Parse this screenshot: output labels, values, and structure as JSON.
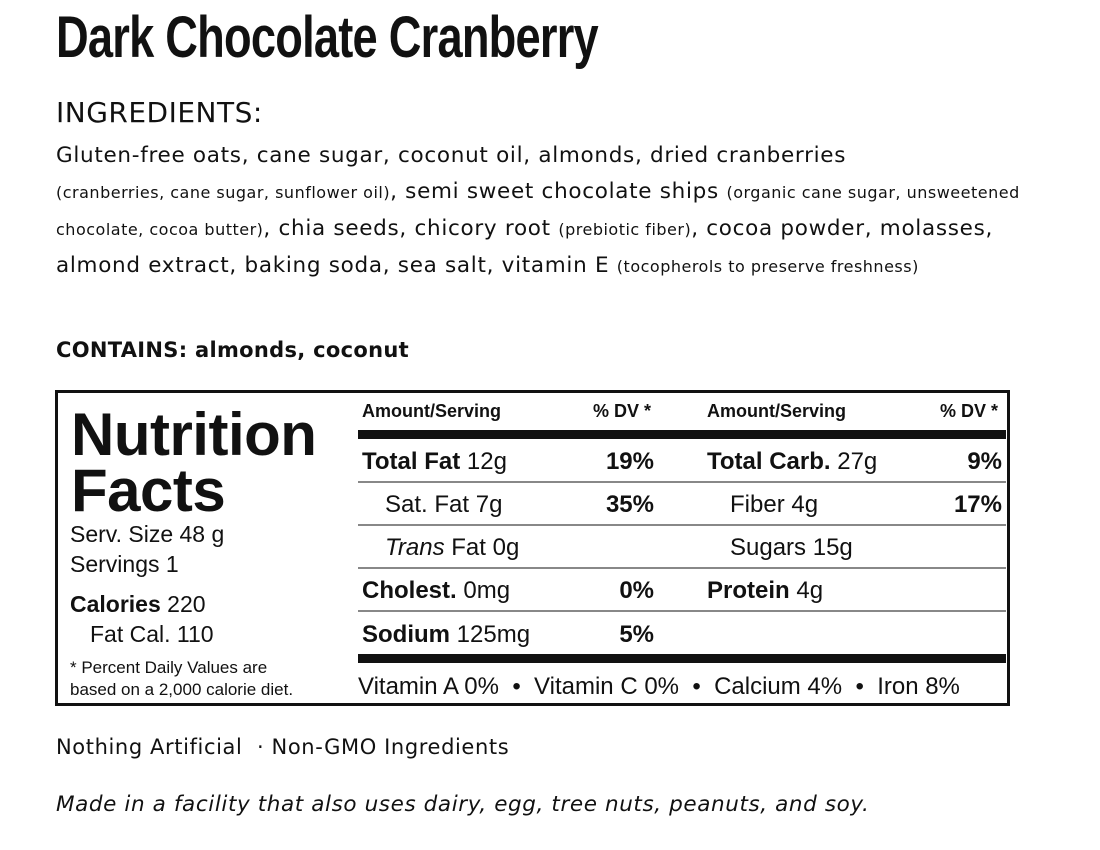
{
  "title": "Dark Chocolate Cranberry",
  "ingredients": {
    "heading": "INGREDIENTS:",
    "part1": "Gluten-free oats, cane sugar, coconut oil, almonds, dried cranberries",
    "part2_small": "(cranberries, cane sugar, sunflower oil)",
    "part3": ", semi sweet chocolate ships",
    "part4_small": "(organic cane sugar, unsweetened chocolate, cocoa butter)",
    "part5": ", chia seeds, chicory root",
    "part6_small": "(prebiotic fiber)",
    "part7": ", cocoa powder, molasses, almond extract, baking soda, sea salt, vitamin E",
    "part8_small": "(tocopherols to preserve freshness)"
  },
  "contains": "CONTAINS: almonds, coconut",
  "nutrition": {
    "title_line1": "Nutrition",
    "title_line2": "Facts",
    "serving_size": "Serv. Size 48 g",
    "servings": "Servings 1",
    "calories_label": "Calories",
    "calories_value": "220",
    "fat_cal": "Fat Cal. 110",
    "footnote_line1": "* Percent Daily Values are",
    "footnote_line2": "based on a 2,000 calorie diet.",
    "header_amount": "Amount/Serving",
    "header_dv": "% DV *",
    "left_rows": [
      {
        "label": "Total Fat",
        "amount": "12g",
        "dv": "19%"
      },
      {
        "label": "Sat. Fat",
        "amount": "7g",
        "dv": "35%"
      },
      {
        "label": "Trans",
        "amount": "Fat 0g",
        "dv": ""
      },
      {
        "label": "Cholest.",
        "amount": "0mg",
        "dv": "0%"
      },
      {
        "label": "Sodium",
        "amount": "125mg",
        "dv": "5%"
      }
    ],
    "right_rows": [
      {
        "label": "Total Carb.",
        "amount": "27g",
        "dv": "9%"
      },
      {
        "label": "Fiber",
        "amount": "4g",
        "dv": "17%"
      },
      {
        "label": "Sugars",
        "amount": "15g",
        "dv": ""
      },
      {
        "label": "Protein",
        "amount": "4g",
        "dv": ""
      }
    ],
    "vitamins": "Vitamin A 0%  •  Vitamin C 0%  •  Calcium 4%  •  Iron 8%"
  },
  "claims": "Nothing Artificial  · Non-GMO Ingredients",
  "disclaimer": "Made in a facility that also uses dairy, egg, tree nuts, peanuts, and soy."
}
